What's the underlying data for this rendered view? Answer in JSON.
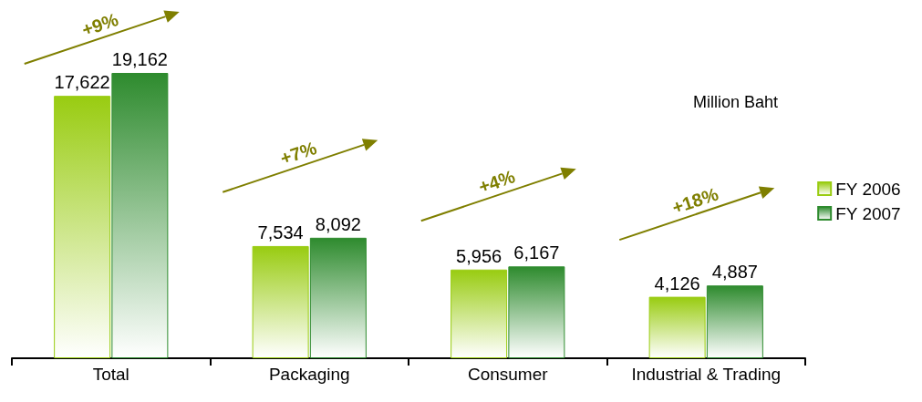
{
  "chart_data": {
    "type": "bar",
    "categories": [
      "Total",
      "Packaging",
      "Consumer",
      "Industrial & Trading"
    ],
    "series": [
      {
        "name": "FY 2006",
        "color": "#99cc11",
        "values": [
          17622,
          7534,
          5956,
          4126
        ],
        "value_labels": [
          "17,622",
          "7,534",
          "5,956",
          "4,126"
        ]
      },
      {
        "name": "FY 2007",
        "color": "#2e8b2e",
        "values": [
          19162,
          8092,
          6167,
          4887
        ],
        "value_labels": [
          "19,162",
          "8,092",
          "6,167",
          "4,887"
        ]
      }
    ],
    "legend": "right",
    "grid": false,
    "annotations": [
      "+9%",
      "+7%",
      "+4%",
      "+18%",
      "Million Baht"
    ]
  }
}
